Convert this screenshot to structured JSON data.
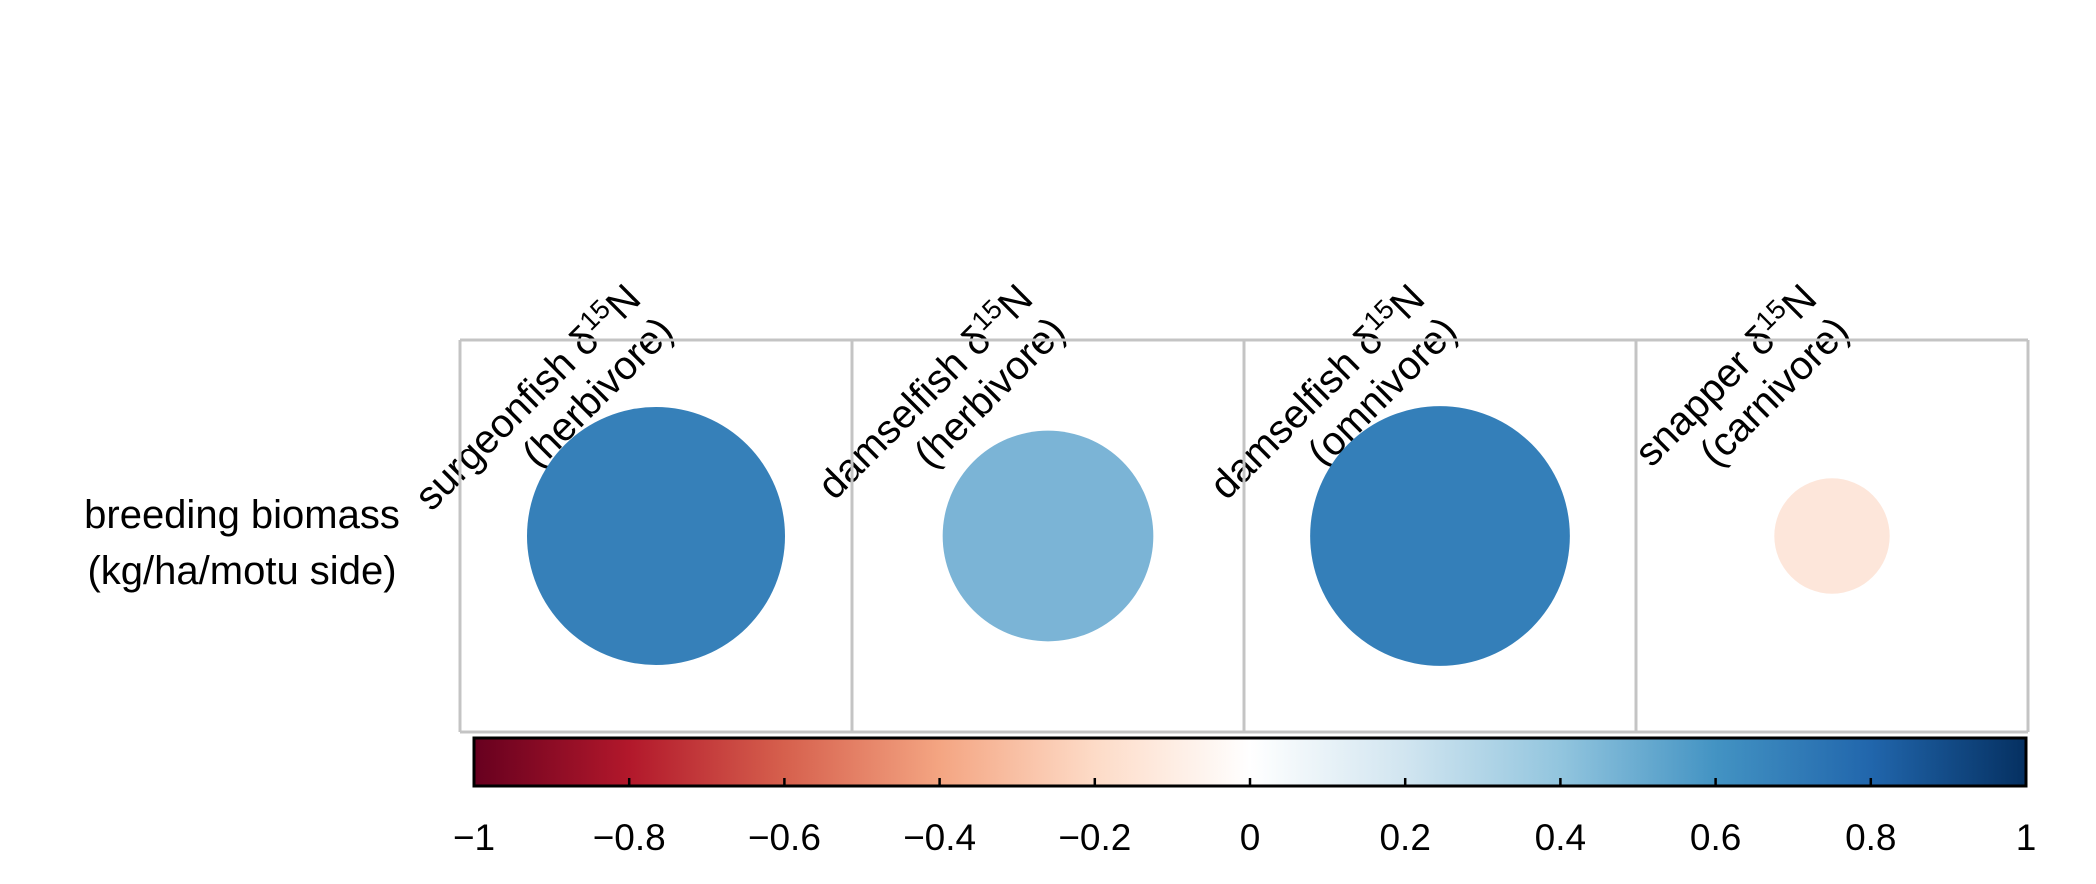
{
  "chart_data": {
    "type": "correlation-plot",
    "columns": [
      {
        "line1": "surgeonfish δ",
        "sup": "15",
        "isotope": "N",
        "line2": "(herbivore)"
      },
      {
        "line1": "damselfish δ",
        "sup": "15",
        "isotope": "N",
        "line2": "(herbivore)"
      },
      {
        "line1": "damselfish δ",
        "sup": "15",
        "isotope": "N",
        "line2": "(omnivore)"
      },
      {
        "line1": "snapper δ",
        "sup": "15",
        "isotope": "N",
        "line2": "(carnivore)"
      }
    ],
    "rows": [
      {
        "line1": "breeding biomass",
        "line2": "(kg/ha/motu side)"
      }
    ],
    "values": [
      [
        0.75,
        0.5,
        0.76,
        -0.15
      ]
    ],
    "colorbar": {
      "range": [
        -1,
        1
      ],
      "ticks": [
        -1,
        -0.8,
        -0.6,
        -0.4,
        -0.2,
        0,
        0.2,
        0.4,
        0.6,
        0.8,
        1
      ],
      "tick_labels": [
        "−1",
        "−0.8",
        "−0.6",
        "−0.4",
        "−0.2",
        "0",
        "0.2",
        "0.4",
        "0.6",
        "0.8",
        "1"
      ],
      "stops": [
        {
          "value": -1.0,
          "color": "#67001F"
        },
        {
          "value": -0.8,
          "color": "#B2182B"
        },
        {
          "value": -0.6,
          "color": "#D6604D"
        },
        {
          "value": -0.4,
          "color": "#F4A582"
        },
        {
          "value": -0.2,
          "color": "#FDDBC7"
        },
        {
          "value": 0.0,
          "color": "#FFFFFF"
        },
        {
          "value": 0.2,
          "color": "#D1E5F0"
        },
        {
          "value": 0.4,
          "color": "#92C5DE"
        },
        {
          "value": 0.6,
          "color": "#4393C3"
        },
        {
          "value": 0.8,
          "color": "#2166AC"
        },
        {
          "value": 1.0,
          "color": "#053061"
        }
      ]
    },
    "cell_colors": [
      "#3680B9",
      "#7BB4D6",
      "#347FB9",
      "#FDE6DA"
    ],
    "grid_color": "#C4C4C4"
  }
}
